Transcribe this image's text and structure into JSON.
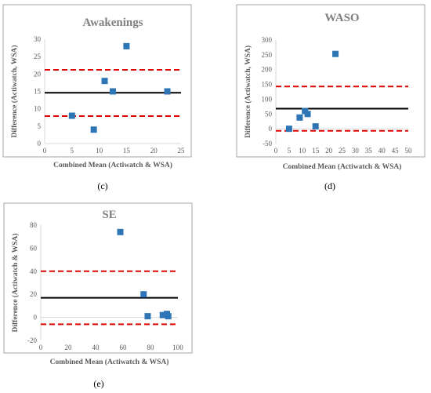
{
  "chart_data": [
    {
      "type": "scatter",
      "title": "Awakenings",
      "xlabel": "Combined Mean (Actiwatch & WSA)",
      "ylabel": "Difference (Actiwatch, WSA)",
      "caption": "(c)",
      "xlim": [
        0,
        25
      ],
      "ylim": [
        0,
        30
      ],
      "x_ticks": [
        0,
        5,
        10,
        15,
        20,
        25
      ],
      "y_ticks": [
        0,
        5,
        10,
        15,
        20,
        25,
        30
      ],
      "points": [
        {
          "x": 5,
          "y": 8
        },
        {
          "x": 9,
          "y": 4
        },
        {
          "x": 11,
          "y": 18
        },
        {
          "x": 12.5,
          "y": 15
        },
        {
          "x": 15,
          "y": 28
        },
        {
          "x": 22.5,
          "y": 15
        }
      ],
      "mean_line": 14.6,
      "upper_loa": 21.2,
      "lower_loa": 7.9,
      "grid": false
    },
    {
      "type": "scatter",
      "title": "WASO",
      "xlabel": "Combined Mean (Actiwatch & WSA)",
      "ylabel": "Difference (Actiwatch, WSA)",
      "caption": "(d)",
      "xlim": [
        0,
        50
      ],
      "ylim": [
        -50,
        300
      ],
      "x_ticks": [
        0,
        5,
        10,
        15,
        20,
        25,
        30,
        35,
        40,
        45,
        50
      ],
      "y_ticks": [
        -50,
        0,
        50,
        100,
        150,
        200,
        250,
        300
      ],
      "points": [
        {
          "x": 5,
          "y": 0
        },
        {
          "x": 9,
          "y": 38
        },
        {
          "x": 11,
          "y": 60
        },
        {
          "x": 12,
          "y": 50
        },
        {
          "x": 15,
          "y": 8
        },
        {
          "x": 22.5,
          "y": 253
        }
      ],
      "mean_line": 68,
      "upper_loa": 143,
      "lower_loa": -7,
      "grid": false
    },
    {
      "type": "scatter",
      "title": "SE",
      "xlabel": "Combined Mean (Actiwatch & WSA)",
      "ylabel": "Difference (Actiwatch & WSA)",
      "caption": "(e)",
      "xlim": [
        0,
        100
      ],
      "ylim": [
        -20,
        80
      ],
      "x_ticks": [
        0,
        20,
        40,
        60,
        80,
        100
      ],
      "y_ticks": [
        -20,
        0,
        20,
        40,
        60,
        80
      ],
      "points": [
        {
          "x": 58,
          "y": 74
        },
        {
          "x": 75,
          "y": 20
        },
        {
          "x": 78,
          "y": 1
        },
        {
          "x": 89,
          "y": 2
        },
        {
          "x": 92,
          "y": 3
        },
        {
          "x": 93,
          "y": 1
        }
      ],
      "mean_line": 17,
      "upper_loa": 40,
      "lower_loa": -6,
      "grid": false
    }
  ],
  "colors": {
    "marker": "#2e75b6",
    "mean_line": "#000000",
    "loa_line": "#e00000",
    "axis": "#d9d9d9",
    "frame": "#a6a6a6"
  }
}
